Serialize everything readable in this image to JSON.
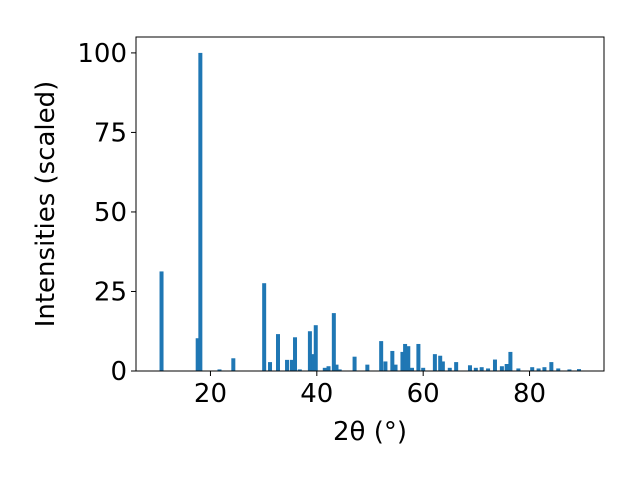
{
  "chart_data": {
    "type": "bar",
    "x_label": "2θ (°)",
    "y_label": "Intensities (scaled)",
    "x": [
      10.8,
      17.6,
      18.1,
      21.7,
      24.3,
      30.1,
      31.2,
      32.7,
      34.4,
      35.3,
      35.9,
      36.8,
      38.7,
      39.3,
      39.8,
      41.5,
      42.2,
      43.2,
      43.7,
      44.3,
      47.1,
      49.5,
      52.1,
      52.9,
      54.2,
      54.8,
      56.1,
      56.6,
      57.2,
      57.9,
      59.1,
      60.0,
      62.2,
      63.2,
      63.7,
      65.0,
      66.2,
      68.8,
      69.9,
      71.0,
      72.2,
      73.5,
      74.8,
      75.7,
      76.4,
      77.9,
      80.5,
      81.7,
      82.8,
      84.1,
      85.4,
      87.5,
      89.3
    ],
    "values": [
      31.3,
      10.3,
      100,
      0.5,
      4,
      27.6,
      2.8,
      11.6,
      3.5,
      3.5,
      10.6,
      0.5,
      12.5,
      5.3,
      14.4,
      1,
      1.5,
      18.2,
      2,
      0.5,
      4.5,
      2,
      9.4,
      3,
      6.3,
      2,
      6,
      8.5,
      7.8,
      1,
      8.5,
      1,
      5.3,
      4.8,
      3,
      1,
      2.8,
      1.8,
      1,
      1.2,
      0.8,
      3.6,
      1.5,
      2.2,
      6,
      0.8,
      1.2,
      0.8,
      1.2,
      2.8,
      0.8,
      0.5,
      0.6
    ],
    "color": "#1f77b4",
    "xlim": [
      6,
      94
    ],
    "ylim": [
      0,
      105
    ],
    "xticks": [
      20,
      40,
      60,
      80
    ],
    "yticks": [
      0,
      25,
      50,
      75,
      100
    ]
  }
}
